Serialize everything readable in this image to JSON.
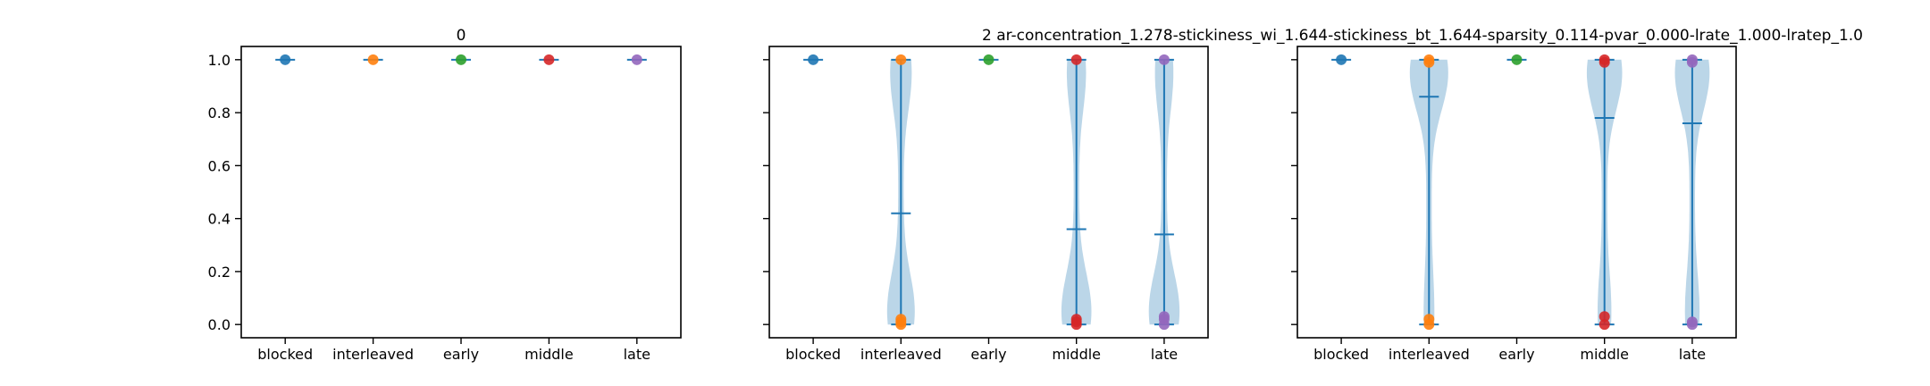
{
  "figure_title": "2    ar-concentration_1.278-stickiness_wi_1.644-stickiness_bt_1.644-sparsity_0.114-pvar_0.000-lrate_1.000-lratep_1.0",
  "chart_data": [
    {
      "type": "violin",
      "title": "0",
      "categories": [
        "blocked",
        "interleaved",
        "early",
        "middle",
        "late"
      ],
      "ylim": [
        -0.05,
        1.05
      ],
      "yticks": [
        0.0,
        0.2,
        0.4,
        0.6,
        0.8,
        1.0
      ],
      "ytick_labels": [
        "0.0",
        "0.2",
        "0.4",
        "0.6",
        "0.8",
        "1.0"
      ],
      "show_ytick_labels": true,
      "series": [
        {
          "category": "blocked",
          "min": 1.0,
          "max": 1.0,
          "mean": 1.0,
          "points": [
            1.0
          ]
        },
        {
          "category": "interleaved",
          "min": 1.0,
          "max": 1.0,
          "mean": 1.0,
          "points": [
            1.0
          ]
        },
        {
          "category": "early",
          "min": 1.0,
          "max": 1.0,
          "mean": 1.0,
          "points": [
            1.0
          ]
        },
        {
          "category": "middle",
          "min": 1.0,
          "max": 1.0,
          "mean": 1.0,
          "points": [
            1.0
          ]
        },
        {
          "category": "late",
          "min": 1.0,
          "max": 1.0,
          "mean": 1.0,
          "points": [
            1.0
          ]
        }
      ]
    },
    {
      "type": "violin",
      "title": "",
      "categories": [
        "blocked",
        "interleaved",
        "early",
        "middle",
        "late"
      ],
      "ylim": [
        -0.05,
        1.05
      ],
      "yticks": [
        0.0,
        0.2,
        0.4,
        0.6,
        0.8,
        1.0
      ],
      "ytick_labels": [
        "0.0",
        "0.2",
        "0.4",
        "0.6",
        "0.8",
        "1.0"
      ],
      "show_ytick_labels": false,
      "series": [
        {
          "category": "blocked",
          "min": 1.0,
          "max": 1.0,
          "mean": 1.0,
          "points": [
            1.0
          ]
        },
        {
          "category": "interleaved",
          "min": 0.0,
          "max": 1.0,
          "mean": 0.42,
          "points": [
            1.0,
            0.02,
            0.0,
            0.01
          ]
        },
        {
          "category": "early",
          "min": 1.0,
          "max": 1.0,
          "mean": 1.0,
          "points": [
            1.0
          ]
        },
        {
          "category": "middle",
          "min": 0.0,
          "max": 1.0,
          "mean": 0.36,
          "points": [
            1.0,
            0.02,
            0.0,
            0.01
          ]
        },
        {
          "category": "late",
          "min": 0.0,
          "max": 1.0,
          "mean": 0.34,
          "points": [
            1.0,
            0.03,
            0.0,
            0.02
          ]
        }
      ]
    },
    {
      "type": "violin",
      "title": "",
      "categories": [
        "blocked",
        "interleaved",
        "early",
        "middle",
        "late"
      ],
      "ylim": [
        -0.05,
        1.05
      ],
      "yticks": [
        0.0,
        0.2,
        0.4,
        0.6,
        0.8,
        1.0
      ],
      "ytick_labels": [
        "0.0",
        "0.2",
        "0.4",
        "0.6",
        "0.8",
        "1.0"
      ],
      "show_ytick_labels": false,
      "series": [
        {
          "category": "blocked",
          "min": 1.0,
          "max": 1.0,
          "mean": 1.0,
          "points": [
            1.0
          ]
        },
        {
          "category": "interleaved",
          "min": 0.0,
          "max": 1.0,
          "mean": 0.86,
          "points": [
            1.0,
            0.99,
            0.02,
            0.0
          ]
        },
        {
          "category": "early",
          "min": 1.0,
          "max": 1.0,
          "mean": 1.0,
          "points": [
            1.0
          ]
        },
        {
          "category": "middle",
          "min": 0.0,
          "max": 1.0,
          "mean": 0.78,
          "points": [
            1.0,
            0.99,
            0.03,
            0.0
          ]
        },
        {
          "category": "late",
          "min": 0.0,
          "max": 1.0,
          "mean": 0.76,
          "points": [
            1.0,
            0.99,
            0.01,
            0.0
          ]
        }
      ]
    }
  ],
  "colors": {
    "violin_fill": "#1f77b4",
    "violin_fill_opacity": 0.3,
    "stats_line": "#1f77b4",
    "points": [
      "#1f77b4",
      "#ff7f0e",
      "#2ca02c",
      "#d62728",
      "#9467bd"
    ]
  }
}
